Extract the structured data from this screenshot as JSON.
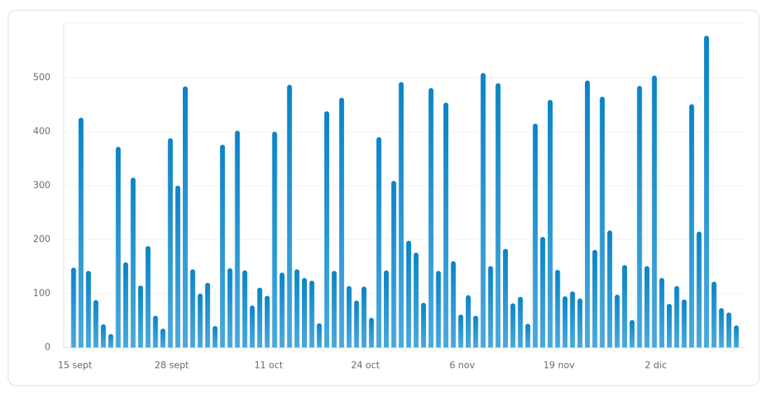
{
  "chart_data": {
    "type": "bar",
    "categories": [
      "15 sept",
      null,
      null,
      null,
      null,
      null,
      null,
      null,
      null,
      null,
      null,
      null,
      null,
      "28 sept",
      null,
      null,
      null,
      null,
      null,
      null,
      null,
      null,
      null,
      null,
      null,
      null,
      "11 oct",
      null,
      null,
      null,
      null,
      null,
      null,
      null,
      null,
      null,
      null,
      null,
      null,
      "24 oct",
      null,
      null,
      null,
      null,
      null,
      null,
      null,
      null,
      null,
      null,
      null,
      null,
      "6 nov",
      null,
      null,
      null,
      null,
      null,
      null,
      null,
      null,
      null,
      null,
      null,
      null,
      "19 nov",
      null,
      null,
      null,
      null,
      null,
      null,
      null,
      null,
      null,
      null,
      null,
      null,
      "2 dic",
      null,
      null,
      null,
      null,
      null,
      null,
      null,
      null,
      null,
      null,
      null
    ],
    "values": [
      148,
      426,
      142,
      88,
      43,
      25,
      372,
      158,
      315,
      115,
      188,
      59,
      35,
      388,
      300,
      484,
      145,
      100,
      120,
      40,
      376,
      147,
      402,
      143,
      78,
      111,
      96,
      400,
      139,
      487,
      145,
      129,
      124,
      45,
      438,
      142,
      463,
      114,
      87,
      113,
      55,
      390,
      143,
      309,
      492,
      198,
      176,
      83,
      481,
      142,
      454,
      160,
      61,
      97,
      59,
      509,
      151,
      490,
      183,
      82,
      94,
      44,
      415,
      205,
      459,
      144,
      95,
      104,
      91,
      495,
      181,
      465,
      217,
      98,
      153,
      51,
      485,
      151,
      504,
      129,
      81,
      114,
      89,
      451,
      215,
      578,
      122,
      73,
      65,
      41
    ],
    "color": "#0a84c6",
    "ylim": [
      0,
      600
    ],
    "yticks": [
      0,
      100,
      200,
      300,
      400,
      500
    ],
    "grid": true
  }
}
